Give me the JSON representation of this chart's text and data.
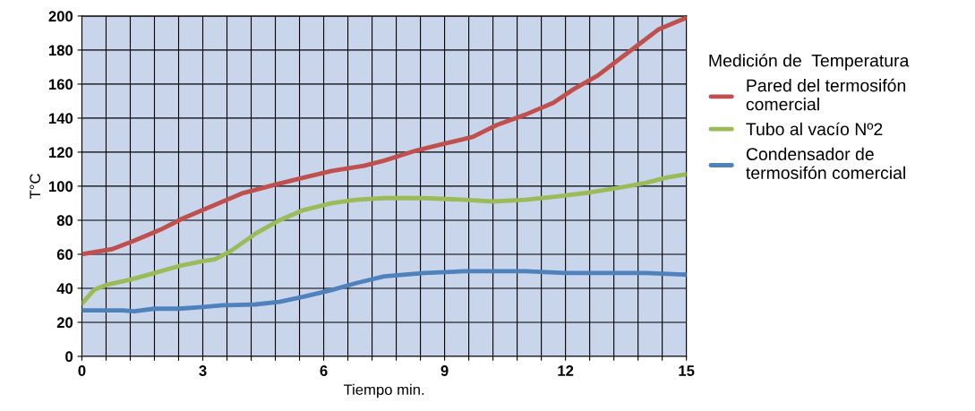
{
  "chart_data": {
    "type": "line",
    "xlabel": "Tiempo min.",
    "ylabel": "T°C",
    "legend_title": "Medición de  Temperatura",
    "legend": "right",
    "grid": true,
    "xlim": [
      0,
      15
    ],
    "ylim": [
      0,
      200
    ],
    "xticks": [
      0,
      {
        "value": 0.6,
        "label": null
      },
      {
        "value": 1.2,
        "label": null
      },
      {
        "value": 1.8,
        "label": null
      },
      {
        "value": 2.4,
        "label": null
      },
      3,
      {
        "value": 3.6,
        "label": null
      },
      {
        "value": 4.2,
        "label": null
      },
      {
        "value": 4.8,
        "label": null
      },
      {
        "value": 5.4,
        "label": null
      },
      6,
      {
        "value": 6.6,
        "label": null
      },
      {
        "value": 7.2,
        "label": null
      },
      {
        "value": 7.8,
        "label": null
      },
      {
        "value": 8.4,
        "label": null
      },
      9,
      {
        "value": 9.6,
        "label": null
      },
      {
        "value": 10.2,
        "label": null
      },
      {
        "value": 10.8,
        "label": null
      },
      {
        "value": 11.4,
        "label": null
      },
      12,
      {
        "value": 12.6,
        "label": null
      },
      {
        "value": 13.2,
        "label": null
      },
      {
        "value": 13.8,
        "label": null
      },
      {
        "value": 14.4,
        "label": null
      },
      15
    ],
    "yticks": [
      0,
      20,
      40,
      60,
      80,
      100,
      120,
      140,
      160,
      180,
      200
    ],
    "series": [
      {
        "name": "Pared del termosifón\ncomercial",
        "color": "#c0504d",
        "x": [
          0,
          0.75,
          1.3,
          2,
          2.5,
          3,
          3.5,
          4,
          4.8,
          5.5,
          6.2,
          7,
          7.5,
          8.3,
          9,
          9.7,
          10.3,
          11,
          11.7,
          12.2,
          12.8,
          13.3,
          13.8,
          14.3,
          15
        ],
        "values": [
          60,
          63,
          68,
          75,
          81,
          86,
          91,
          96,
          101,
          105,
          109,
          112,
          115,
          121,
          125,
          129,
          136,
          142,
          149,
          157,
          165,
          174,
          183,
          192,
          199
        ]
      },
      {
        "name": "Tubo al vacío Nº2",
        "color": "#9bbb59",
        "x": [
          0,
          0.3,
          0.6,
          1.2,
          1.8,
          2.4,
          3,
          3.3,
          3.7,
          4.3,
          4.9,
          5.5,
          6.2,
          6.8,
          7.5,
          8.5,
          9.5,
          10.2,
          11,
          11.8,
          12.5,
          13.3,
          14,
          14.5,
          15
        ],
        "values": [
          31,
          39,
          42,
          45,
          49,
          53,
          56,
          57,
          62,
          72,
          80,
          86,
          90,
          92,
          93,
          93,
          92,
          91,
          92,
          94,
          96,
          99,
          102,
          105,
          107
        ]
      },
      {
        "name": "Condensador de\ntermosifón comercial",
        "color": "#4f81bd",
        "x": [
          0,
          0.6,
          1,
          1.3,
          1.8,
          2.4,
          3,
          3.5,
          4.3,
          4.9,
          5.5,
          6.2,
          6.8,
          7.5,
          8.5,
          9.5,
          10.5,
          11,
          12,
          13,
          14,
          15
        ],
        "values": [
          27,
          27,
          27,
          26.5,
          28,
          28,
          29,
          30,
          30.5,
          32,
          35,
          39,
          43,
          47,
          49,
          50,
          50,
          50,
          49,
          49,
          49,
          48
        ]
      }
    ]
  }
}
